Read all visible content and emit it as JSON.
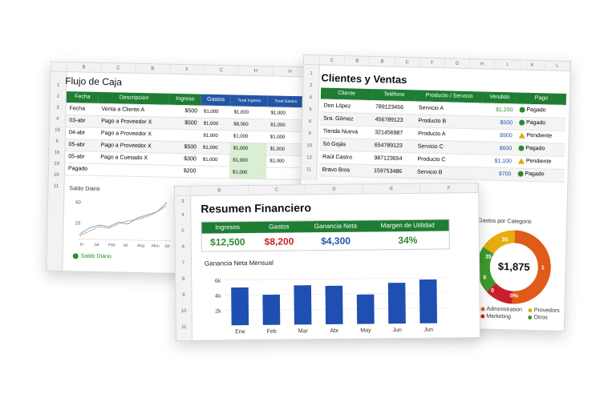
{
  "cashflow": {
    "title": "Flujo de Caja",
    "columns": [
      "B",
      "C",
      "B",
      "F",
      "C",
      "H",
      "H"
    ],
    "rows_idx": [
      "1",
      "2",
      "3",
      "4",
      "15",
      "6",
      "18",
      "19",
      "10",
      "11"
    ],
    "headers": [
      "Fecha",
      "Descripcion",
      "Ingreso",
      "Gastos",
      "Toral Ingreso",
      "Toral Gastos"
    ],
    "rows": [
      {
        "date": "Fecha",
        "desc": "Venta a Cliente A",
        "ing": "$500",
        "gas": "$1,000",
        "ti": "$1,000",
        "tg": "$1,000"
      },
      {
        "date": "03-abr",
        "desc": "Pago a Proveedor X",
        "ing": "$500",
        "gas": "$1,000",
        "ti": "$8,000",
        "tg": "$1,000"
      },
      {
        "date": "04-abr",
        "desc": "Pago a Proveedor X",
        "ing": "",
        "gas": "$1,000",
        "ti": "$1,000",
        "tg": "$1,000"
      },
      {
        "date": "05-abr",
        "desc": "Pago a Proveedor X",
        "ing": "$500",
        "gas": "$1,000",
        "ti": "$1,000",
        "tg": "$1,000"
      },
      {
        "date": "05-abr",
        "desc": "Pago a Cuesado X",
        "ing": "$300",
        "gas": "$1,000",
        "ti": "$1,000",
        "tg": "$1,000"
      },
      {
        "date": "Pagado",
        "desc": "",
        "ing": "$200",
        "gas": "",
        "ti": "$1,000",
        "tg": ""
      }
    ],
    "chart_title": "Saldo Diario",
    "chart_y": [
      "60",
      "20"
    ],
    "chart_x": [
      "Jv",
      "Jul",
      "Feb",
      "Jul",
      "Aug",
      "Mon",
      "Jul"
    ],
    "footer": "Saldo Diario"
  },
  "clients": {
    "title": "Clientes y Ventas",
    "columns": [
      "C",
      "B",
      "B",
      "C",
      "F",
      "G",
      "H",
      "I",
      "K",
      "L"
    ],
    "rows_idx": [
      "1",
      "2",
      "4",
      "5",
      "6",
      "9",
      "10",
      "12",
      "11"
    ],
    "headers": [
      "Cliente",
      "Teléfono",
      "Producto / Servicio",
      "Vendido",
      "Pago"
    ],
    "rows": [
      {
        "name": "Don López",
        "phone": "789123456",
        "prod": "Servicio A",
        "amt": "$1,200",
        "status": "Pagado",
        "kind": "ok"
      },
      {
        "name": "Sra. Gómez",
        "phone": "456789123",
        "prod": "Producto B",
        "amt": "$500",
        "status": "Pagado",
        "kind": "ok"
      },
      {
        "name": "Tienda Nueva",
        "phone": "321456987",
        "prod": "Producto A",
        "amt": "$900",
        "status": "Pendiente",
        "kind": "warn"
      },
      {
        "name": "Só Gojás",
        "phone": "654789123",
        "prod": "Servicio C",
        "amt": "$600",
        "status": "Pagado",
        "kind": "ok"
      },
      {
        "name": "Raúl Castro",
        "phone": "987123654",
        "prod": "Producto C",
        "amt": "$1,100",
        "status": "Pendiente",
        "kind": "warn"
      },
      {
        "name": "Bravo Bros",
        "phone": "159753486",
        "prod": "Servicio B",
        "amt": "$700",
        "status": "Pagado",
        "kind": "ok"
      }
    ],
    "donut_title": "Gastos por Categorio",
    "donut_total": "$1,875",
    "donut_labels": [
      "35",
      "35",
      "6",
      "0",
      "0%",
      "1"
    ],
    "legend": [
      "Administration",
      "Provedors",
      "Marketing",
      "Otros"
    ],
    "colors": {
      "orange": "#e05a1a",
      "red": "#c8202a",
      "yellow": "#e6ac10",
      "green": "#3f9a2c"
    }
  },
  "summary": {
    "title": "Resumen Financiero",
    "columns": [
      "B",
      "C",
      "D",
      "E",
      "F"
    ],
    "rows_idx": [
      "3",
      "4",
      "5",
      "6",
      "7",
      "8",
      "9",
      "10",
      "11"
    ],
    "kpi_labels": [
      "Ingresos",
      "Gastos",
      "Ganancia Neta",
      "Margen de Utilidad"
    ],
    "kpi_values": [
      "$12,500",
      "$8,200",
      "$4,300",
      "34%"
    ],
    "chart_title": "Ganancia Neta Mensual",
    "chart_data": {
      "type": "bar",
      "title": "Ganancia Neta Mensual",
      "categories": [
        "Ene",
        "Feb",
        "Mar",
        "Abr",
        "May",
        "Jun",
        "Jun"
      ],
      "values": [
        5000,
        4000,
        5200,
        5100,
        3900,
        5400,
        5800
      ],
      "yticks": [
        "6k",
        "4k",
        "2k"
      ],
      "ylim": [
        0,
        7000
      ],
      "color": "#1f4fb0"
    }
  }
}
